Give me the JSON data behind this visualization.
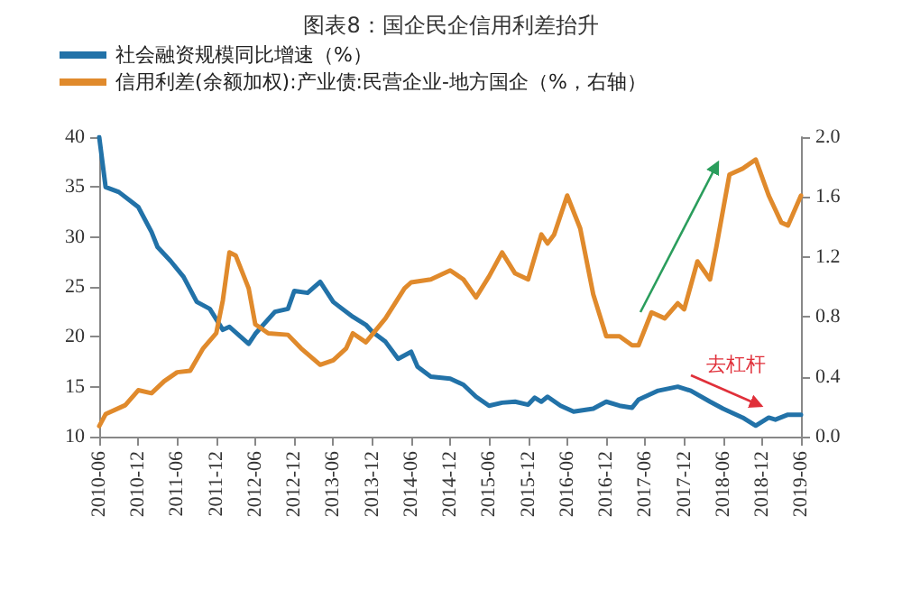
{
  "chart_data": {
    "type": "line",
    "title": "图表8：国企民企信用利差抬升",
    "legend": "top left",
    "xlim": [
      "2010-06",
      "2019-06"
    ],
    "xticks": [
      "2010-06",
      "2010-12",
      "2011-06",
      "2011-12",
      "2012-06",
      "2012-12",
      "2013-06",
      "2013-12",
      "2014-06",
      "2014-12",
      "2015-06",
      "2015-12",
      "2016-06",
      "2016-12",
      "2017-06",
      "2017-12",
      "2018-06",
      "2018-12",
      "2019-06"
    ],
    "ylim": [
      10,
      40
    ],
    "yticks": [
      10,
      15,
      20,
      25,
      30,
      35,
      40
    ],
    "y2lim": [
      0,
      2
    ],
    "y2ticks": [
      {
        "value": 0,
        "label": "0.0"
      },
      {
        "value": 0.4,
        "label": "0.4"
      },
      {
        "value": 0.8,
        "label": "0.8"
      },
      {
        "value": 1.2,
        "label": "1.2"
      },
      {
        "value": 1.6,
        "label": "1.6"
      },
      {
        "value": 2,
        "label": "2.0"
      }
    ],
    "annotations": [
      "去杠杆"
    ],
    "series": [
      {
        "name": "社会融资规模同比增速（%）",
        "color": "#2272a8",
        "x": [
          "2010-06",
          "2010-07",
          "2010-09",
          "2010-11",
          "2010-12",
          "2011-02",
          "2011-03",
          "2011-05",
          "2011-07",
          "2011-09",
          "2011-11",
          "2012-01",
          "2012-02",
          "2012-05",
          "2012-06",
          "2012-09",
          "2012-11",
          "2012-12",
          "2013-02",
          "2013-04",
          "2013-06",
          "2013-07",
          "2013-09",
          "2013-11",
          "2013-12",
          "2014-02",
          "2014-04",
          "2014-06",
          "2014-07",
          "2014-09",
          "2014-12",
          "2015-02",
          "2015-04",
          "2015-06",
          "2015-08",
          "2015-10",
          "2015-12",
          "2016-01",
          "2016-02",
          "2016-03",
          "2016-05",
          "2016-07",
          "2016-10",
          "2016-12",
          "2017-02",
          "2017-04",
          "2017-05",
          "2017-08",
          "2017-11",
          "2018-01",
          "2018-04",
          "2018-06",
          "2018-09",
          "2018-11",
          "2019-01",
          "2019-02",
          "2019-04",
          "2019-06"
        ],
        "values": [
          40,
          35,
          34.5,
          33.5,
          33,
          30.5,
          29,
          27.6,
          26,
          23.5,
          22.8,
          20.7,
          21,
          19.3,
          20.3,
          22.5,
          22.8,
          24.6,
          24.4,
          25.5,
          23.5,
          23,
          22,
          21.2,
          20.5,
          19.5,
          17.8,
          18.5,
          17,
          16,
          15.8,
          15.2,
          14,
          13.1,
          13.4,
          13.5,
          13.2,
          13.9,
          13.5,
          14,
          13.1,
          12.5,
          12.8,
          13.5,
          13.1,
          12.9,
          13.7,
          14.6,
          15,
          14.6,
          13.5,
          12.8,
          11.9,
          11.1,
          11.9,
          11.7,
          12.2,
          12.2
        ]
      },
      {
        "name": "信用利差(余额加权):产业债:民营企业-地方国企（%，右轴）",
        "color": "#e08a2c",
        "axis": "y2",
        "x": [
          "2010-06",
          "2010-07",
          "2010-10",
          "2010-12",
          "2011-02",
          "2011-04",
          "2011-06",
          "2011-08",
          "2011-10",
          "2011-12",
          "2012-01",
          "2012-02",
          "2012-03",
          "2012-05",
          "2012-06",
          "2012-08",
          "2012-11",
          "2013-01",
          "2013-04",
          "2013-06",
          "2013-08",
          "2013-09",
          "2013-11",
          "2014-02",
          "2014-05",
          "2014-06",
          "2014-09",
          "2014-12",
          "2015-02",
          "2015-04",
          "2015-06",
          "2015-08",
          "2015-10",
          "2015-12",
          "2016-02",
          "2016-03",
          "2016-04",
          "2016-06",
          "2016-08",
          "2016-10",
          "2016-12",
          "2017-02",
          "2017-04",
          "2017-05",
          "2017-07",
          "2017-09",
          "2017-11",
          "2017-12",
          "2018-02",
          "2018-04",
          "2018-05",
          "2018-07",
          "2018-09",
          "2018-11",
          "2019-01",
          "2019-03",
          "2019-04",
          "2019-06"
        ],
        "values": [
          0.07,
          0.15,
          0.21,
          0.31,
          0.29,
          0.37,
          0.43,
          0.44,
          0.59,
          0.69,
          0.91,
          1.23,
          1.21,
          0.99,
          0.75,
          0.69,
          0.68,
          0.59,
          0.48,
          0.51,
          0.59,
          0.69,
          0.63,
          0.79,
          0.99,
          1.03,
          1.05,
          1.11,
          1.05,
          0.93,
          1.07,
          1.23,
          1.09,
          1.05,
          1.35,
          1.29,
          1.35,
          1.61,
          1.39,
          0.95,
          0.67,
          0.67,
          0.61,
          0.61,
          0.83,
          0.79,
          0.89,
          0.85,
          1.17,
          1.05,
          1.27,
          1.75,
          1.79,
          1.85,
          1.61,
          1.43,
          1.41,
          1.61
        ]
      }
    ]
  }
}
